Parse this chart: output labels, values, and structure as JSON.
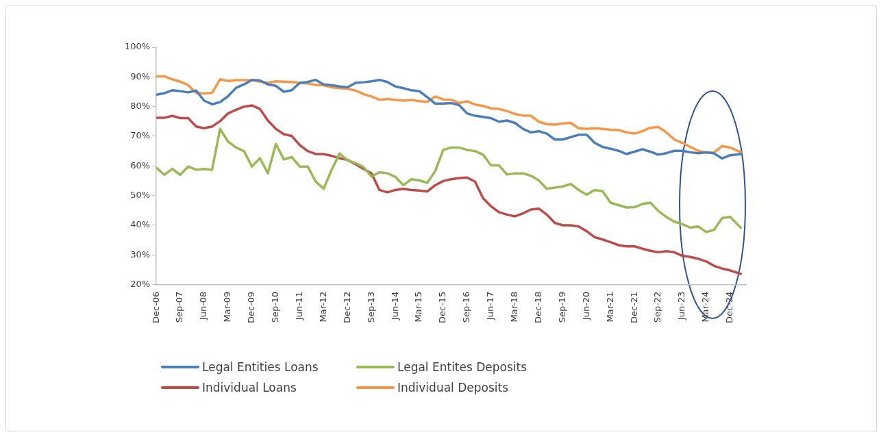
{
  "chart_data": {
    "type": "line",
    "x": [
      "2006-12",
      "2007-03",
      "2007-06",
      "2007-09",
      "2007-12",
      "2008-03",
      "2008-06",
      "2008-09",
      "2008-12",
      "2009-03",
      "2009-06",
      "2009-09",
      "2009-12",
      "2010-03",
      "2010-06",
      "2010-09",
      "2010-12",
      "2011-03",
      "2011-06",
      "2011-09",
      "2011-12",
      "2012-03",
      "2012-06",
      "2012-09",
      "2012-12",
      "2013-03",
      "2013-06",
      "2013-09",
      "2013-12",
      "2014-03",
      "2014-06",
      "2014-09",
      "2014-12",
      "2015-03",
      "2015-06",
      "2015-09",
      "2015-12",
      "2016-03",
      "2016-06",
      "2016-09",
      "2016-12",
      "2017-03",
      "2017-06",
      "2017-09",
      "2017-12",
      "2018-03",
      "2018-06",
      "2018-09",
      "2018-12",
      "2019-03",
      "2019-06",
      "2019-09",
      "2019-12",
      "2020-03",
      "2020-06",
      "2020-09",
      "2020-12",
      "2021-03",
      "2021-06",
      "2021-09",
      "2021-12",
      "2022-03",
      "2022-06",
      "2022-09",
      "2022-12",
      "2023-03",
      "2023-06",
      "2023-09",
      "2023-12",
      "2024-03",
      "2024-06",
      "2024-09",
      "2024-12",
      "2025-04"
    ],
    "series": [
      {
        "name": "Legal Entities Loans",
        "color": "#4a7ebb",
        "values": [
          84,
          84.5,
          85.5,
          85.2,
          84.8,
          85.4,
          82,
          80.8,
          81.5,
          83.5,
          86.3,
          87.5,
          89,
          88.8,
          87.5,
          87,
          85,
          85.5,
          88,
          88.3,
          89,
          87.5,
          87.2,
          86.8,
          86.5,
          88,
          88.2,
          88.5,
          89,
          88.3,
          86.8,
          86.2,
          85.5,
          85.2,
          83.2,
          81,
          81,
          81.2,
          80.5,
          77.7,
          76.9,
          76.5,
          76.1,
          74.9,
          75.3,
          74.5,
          72.5,
          71.3,
          71.7,
          70.9,
          68.9,
          68.9,
          69.7,
          70.5,
          70.5,
          67.8,
          66.4,
          65.8,
          65.1,
          64,
          64.8,
          65.6,
          64.8,
          63.8,
          64.3,
          65.1,
          65.1,
          64.6,
          64.3,
          64.6,
          64.2,
          62.5,
          63.6,
          64
        ]
      },
      {
        "name": "Legal Entites Deposits",
        "color": "#98b954",
        "values": [
          59.4,
          57,
          59,
          57,
          59.8,
          58.7,
          59,
          58.7,
          72.5,
          68.2,
          66.2,
          65,
          59.8,
          62.6,
          57.5,
          67.4,
          62.2,
          63,
          59.8,
          59.8,
          54.7,
          52.3,
          58.7,
          64.2,
          61.8,
          61,
          59.6,
          56.4,
          57.9,
          57.5,
          56.3,
          53.5,
          55.5,
          55.1,
          54.3,
          58.3,
          65.4,
          66.2,
          66.2,
          65.4,
          65,
          63.8,
          60.2,
          60.2,
          57.1,
          57.5,
          57.5,
          56.7,
          55.1,
          52.3,
          52.7,
          53.1,
          53.9,
          51.9,
          50.3,
          51.9,
          51.5,
          47.6,
          46.8,
          46,
          46.1,
          47.2,
          47.6,
          44.8,
          42.8,
          41.2,
          40.4,
          39.2,
          39.6,
          37.7,
          38.5,
          42.4,
          42.8,
          39.2
        ]
      },
      {
        "name": "Individual Loans",
        "color": "#be4b48",
        "values": [
          76.2,
          76.2,
          76.9,
          76.1,
          76.1,
          73.3,
          72.7,
          73.3,
          75.1,
          77.7,
          78.9,
          80,
          80.4,
          79.2,
          75.3,
          72.5,
          70.7,
          70.1,
          67,
          65,
          64,
          64,
          63.4,
          62.6,
          62,
          60.6,
          59,
          57.5,
          51.9,
          51.1,
          51.9,
          52.3,
          51.9,
          51.7,
          51.4,
          53.5,
          54.9,
          55.5,
          55.9,
          56.1,
          54.7,
          49.1,
          46.4,
          44.4,
          43.6,
          43,
          44,
          45.3,
          45.6,
          43.6,
          40.8,
          40,
          40,
          39.6,
          38,
          36,
          35.2,
          34.3,
          33.3,
          32.9,
          32.9,
          32.1,
          31.4,
          30.9,
          31.3,
          30.9,
          29.7,
          29.3,
          28.7,
          27.8,
          26.3,
          25.4,
          24.8,
          23.6
        ]
      },
      {
        "name": "Individual Deposits",
        "color": "#f79646",
        "values": [
          90.2,
          90.2,
          89.2,
          88.4,
          87.2,
          84.6,
          84.4,
          84.6,
          89.2,
          88.6,
          88.9,
          88.9,
          88.9,
          88.4,
          88,
          88.5,
          88.4,
          88.3,
          88,
          87.8,
          87.3,
          87.2,
          86.5,
          86.2,
          86,
          85.4,
          84.2,
          83.4,
          82.3,
          82.6,
          82.3,
          82,
          82.3,
          81.8,
          81.6,
          83.4,
          82.4,
          82.3,
          81.2,
          81.8,
          80.7,
          80.2,
          79.4,
          79.2,
          78.5,
          77.5,
          77,
          76.9,
          74.9,
          74.1,
          73.9,
          74.3,
          74.5,
          72.7,
          72.5,
          72.7,
          72.5,
          72.2,
          72.1,
          71.3,
          70.9,
          71.7,
          72.9,
          73.1,
          71.3,
          68.9,
          67.8,
          66.4,
          65.1,
          64.4,
          64.6,
          66.7,
          66.2,
          64.6
        ]
      }
    ],
    "xlim": [
      "2006-12",
      "2025-06"
    ],
    "xticks": [
      {
        "value": "2006-12",
        "label": "Dec-06"
      },
      {
        "value": "2007-09",
        "label": "Sep-07"
      },
      {
        "value": "2008-06",
        "label": "Jun-08"
      },
      {
        "value": "2009-03",
        "label": "Mar-09"
      },
      {
        "value": "2009-12",
        "label": "Dec-09"
      },
      {
        "value": "2010-09",
        "label": "Sep-10"
      },
      {
        "value": "2011-06",
        "label": "Jun-11"
      },
      {
        "value": "2012-03",
        "label": "Mar-12"
      },
      {
        "value": "2012-12",
        "label": "Dec-12"
      },
      {
        "value": "2013-09",
        "label": "Sep-13"
      },
      {
        "value": "2014-06",
        "label": "Jun-14"
      },
      {
        "value": "2015-03",
        "label": "Mar-15"
      },
      {
        "value": "2015-12",
        "label": "Dec-15"
      },
      {
        "value": "2016-09",
        "label": "Sep-16"
      },
      {
        "value": "2017-06",
        "label": "Jun-17"
      },
      {
        "value": "2018-03",
        "label": "Mar-18"
      },
      {
        "value": "2018-12",
        "label": "Dec-18"
      },
      {
        "value": "2019-09",
        "label": "Sep-19"
      },
      {
        "value": "2020-06",
        "label": "Jun-20"
      },
      {
        "value": "2021-03",
        "label": "Mar-21"
      },
      {
        "value": "2021-12",
        "label": "Dec-21"
      },
      {
        "value": "2022-09",
        "label": "Sep-22"
      },
      {
        "value": "2023-06",
        "label": "Jun-23"
      },
      {
        "value": "2024-03",
        "label": "Mar-24"
      },
      {
        "value": "2024-12",
        "label": "Dec-24"
      }
    ],
    "ylim": [
      20,
      100
    ],
    "yticks": [
      {
        "value": 20,
        "label": "20%"
      },
      {
        "value": 30,
        "label": "30%"
      },
      {
        "value": 40,
        "label": "40%"
      },
      {
        "value": 50,
        "label": "50%"
      },
      {
        "value": 60,
        "label": "60%"
      },
      {
        "value": 70,
        "label": "70%"
      },
      {
        "value": 80,
        "label": "80%"
      },
      {
        "value": 90,
        "label": "90%"
      },
      {
        "value": 100,
        "label": "100%"
      }
    ],
    "grid": false,
    "legend": "bottom",
    "marker": "none",
    "line_style": "solid"
  }
}
